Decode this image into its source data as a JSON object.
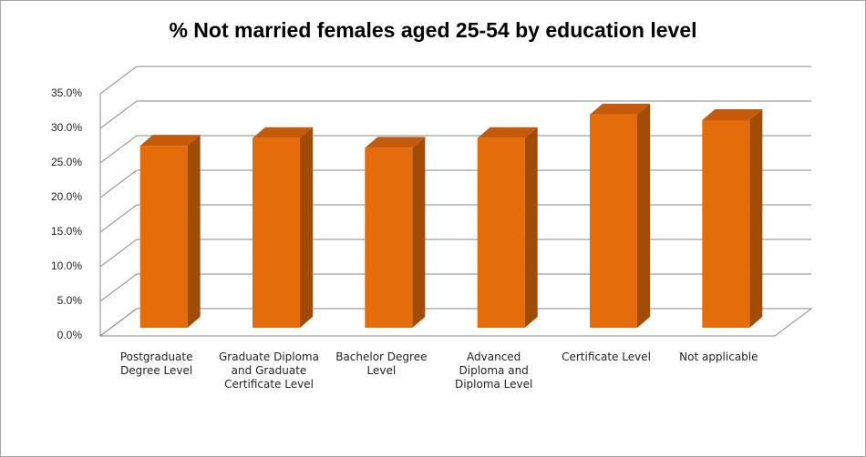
{
  "chart_data": {
    "type": "bar3d",
    "title": "% Not married females aged 25-54 by education level",
    "categories": [
      "Postgraduate Degree Level",
      "Graduate Diploma and Graduate Certificate Level",
      "Bachelor Degree Level",
      "Advanced Diploma and Diploma Level",
      "Certificate Level",
      "Not applicable"
    ],
    "values": [
      26.3,
      27.4,
      26.0,
      27.4,
      30.8,
      30.0
    ],
    "color": "#e46c0a",
    "ylim": [
      0,
      35
    ],
    "yticks": [
      {
        "value": 0,
        "label": "0.0%"
      },
      {
        "value": 5,
        "label": "5.0%"
      },
      {
        "value": 10,
        "label": "10.0%"
      },
      {
        "value": 15,
        "label": "15.0%"
      },
      {
        "value": 20,
        "label": "20.0%"
      },
      {
        "value": 25,
        "label": "25.0%"
      },
      {
        "value": 30,
        "label": "30.0%"
      },
      {
        "value": 35,
        "label": "35.0%"
      }
    ],
    "grid": true
  }
}
